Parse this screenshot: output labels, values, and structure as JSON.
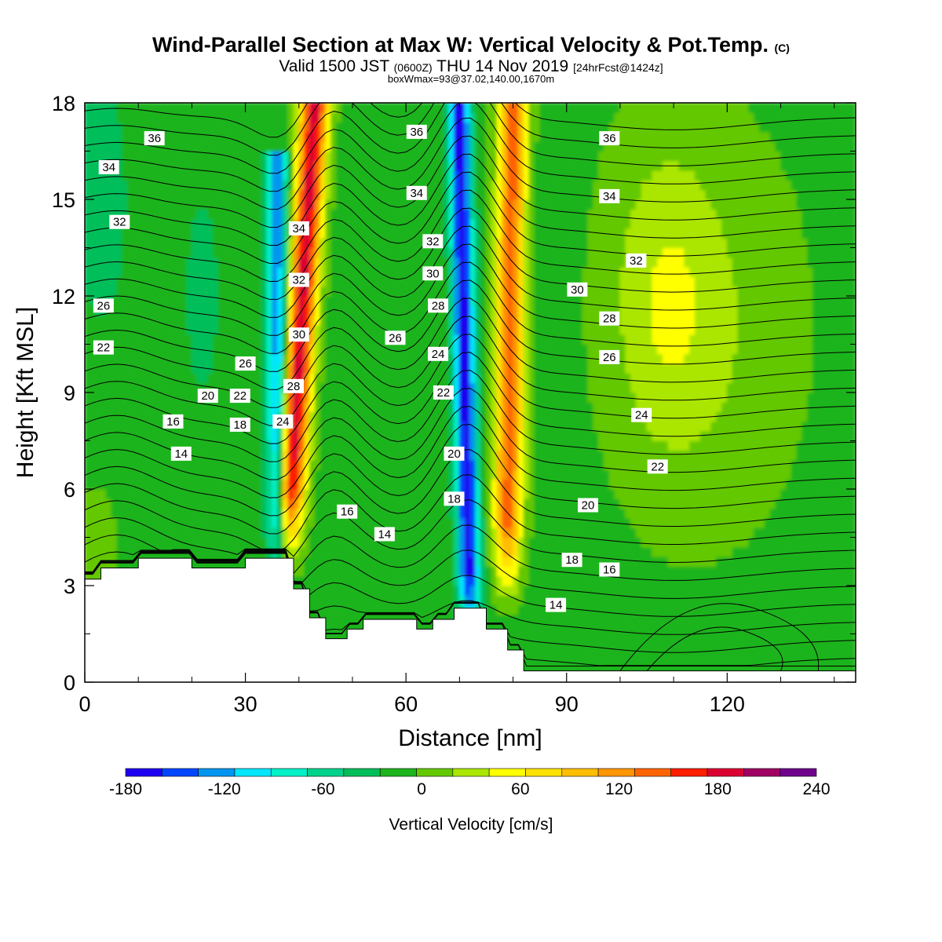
{
  "chart_data": {
    "type": "heatmap",
    "title": "Wind-Parallel Section at Max W: Vertical Velocity & Pot.Temp.",
    "title_mark": "(C)",
    "subtitle": {
      "prefix": "Valid 1500 JST",
      "utc": "(0600Z)",
      "date": "THU 14 Nov 2019",
      "fcst": "[24hrFcst@1424z]"
    },
    "box_info": "boxWmax=93@37.02,140.00,1670m",
    "xlabel": "Distance [nm]",
    "ylabel": "Height [Kft MSL]",
    "xlim": [
      0,
      144
    ],
    "ylim": [
      0,
      18
    ],
    "x_ticks": [
      0,
      30,
      60,
      90,
      120
    ],
    "y_ticks": [
      0,
      3,
      6,
      9,
      12,
      15,
      18
    ],
    "colorbar": {
      "label": "Vertical Velocity [cm/s]",
      "min": -180,
      "max": 240,
      "tick_values": [
        -180,
        -120,
        -60,
        0,
        60,
        120,
        180,
        240
      ],
      "colors": [
        "#1f00f0",
        "#0046ff",
        "#0096f0",
        "#00e6ff",
        "#00f0c8",
        "#00d28c",
        "#00be5a",
        "#1eb41e",
        "#64c800",
        "#aae600",
        "#ffff00",
        "#ffe100",
        "#ffbe00",
        "#ff9600",
        "#ff6400",
        "#ff1e00",
        "#dc0032",
        "#a00064",
        "#6e008c"
      ]
    },
    "fields": {
      "vertical_velocity": {
        "units": "cm/s",
        "features": [
          {
            "kind": "updraft",
            "x_top": 43,
            "x_bottom": 38,
            "y_range": [
              4.5,
              18
            ],
            "peak": 200
          },
          {
            "kind": "updraft",
            "x_top": 80,
            "x_bottom": 79,
            "y_range": [
              3.5,
              18
            ],
            "peak": 150
          },
          {
            "kind": "downdraft",
            "x_top": 36,
            "x_bottom": 36,
            "y_range": [
              3.5,
              15
            ],
            "peak": -120
          },
          {
            "kind": "downdraft",
            "x_top": 70,
            "x_bottom": 72,
            "y_range": [
              2,
              18
            ],
            "peak": -170
          }
        ]
      },
      "potential_temperature": {
        "units": "degC",
        "contour_labels": [
          {
            "value": "36",
            "x": 13,
            "y": 16.9
          },
          {
            "value": "34",
            "x": 4.5,
            "y": 16.0
          },
          {
            "value": "32",
            "x": 6.5,
            "y": 14.3
          },
          {
            "value": "26",
            "x": 3.5,
            "y": 11.7
          },
          {
            "value": "22",
            "x": 3.5,
            "y": 10.4
          },
          {
            "value": "26",
            "x": 30,
            "y": 9.9
          },
          {
            "value": "20",
            "x": 23,
            "y": 8.9
          },
          {
            "value": "22",
            "x": 29,
            "y": 8.9
          },
          {
            "value": "16",
            "x": 16.5,
            "y": 8.1
          },
          {
            "value": "18",
            "x": 29,
            "y": 8.0
          },
          {
            "value": "14",
            "x": 18,
            "y": 7.1
          },
          {
            "value": "34",
            "x": 40,
            "y": 14.1
          },
          {
            "value": "32",
            "x": 40,
            "y": 12.5
          },
          {
            "value": "30",
            "x": 40,
            "y": 10.8
          },
          {
            "value": "28",
            "x": 39,
            "y": 9.2
          },
          {
            "value": "24",
            "x": 37,
            "y": 8.1
          },
          {
            "value": "16",
            "x": 49,
            "y": 5.3
          },
          {
            "value": "14",
            "x": 56,
            "y": 4.6
          },
          {
            "value": "36",
            "x": 62,
            "y": 17.1
          },
          {
            "value": "34",
            "x": 62,
            "y": 15.2
          },
          {
            "value": "32",
            "x": 65,
            "y": 13.7
          },
          {
            "value": "30",
            "x": 65,
            "y": 12.7
          },
          {
            "value": "28",
            "x": 66,
            "y": 11.7
          },
          {
            "value": "26",
            "x": 58,
            "y": 10.7
          },
          {
            "value": "24",
            "x": 66,
            "y": 10.2
          },
          {
            "value": "22",
            "x": 67,
            "y": 9.0
          },
          {
            "value": "20",
            "x": 69,
            "y": 7.1
          },
          {
            "value": "18",
            "x": 69,
            "y": 5.7
          },
          {
            "value": "36",
            "x": 98,
            "y": 16.9
          },
          {
            "value": "34",
            "x": 98,
            "y": 15.1
          },
          {
            "value": "32",
            "x": 103,
            "y": 13.1
          },
          {
            "value": "30",
            "x": 92,
            "y": 12.2
          },
          {
            "value": "28",
            "x": 98,
            "y": 11.3
          },
          {
            "value": "26",
            "x": 98,
            "y": 10.1
          },
          {
            "value": "24",
            "x": 104,
            "y": 8.3
          },
          {
            "value": "22",
            "x": 107,
            "y": 6.7
          },
          {
            "value": "20",
            "x": 94,
            "y": 5.5
          },
          {
            "value": "18",
            "x": 91,
            "y": 3.8
          },
          {
            "value": "16",
            "x": 98,
            "y": 3.5
          },
          {
            "value": "14",
            "x": 88,
            "y": 2.4
          }
        ]
      }
    },
    "terrain_kft": {
      "x": [
        0,
        3,
        3,
        10,
        10,
        20,
        20,
        30,
        30,
        39,
        39,
        42,
        42,
        45,
        45,
        49,
        49,
        52,
        52,
        62,
        62,
        65,
        65,
        69,
        69,
        75,
        75,
        79,
        79,
        82,
        82,
        144
      ],
      "height": [
        3.2,
        3.2,
        3.55,
        3.55,
        3.85,
        3.85,
        3.55,
        3.55,
        3.85,
        3.85,
        2.9,
        2.9,
        2.0,
        2.0,
        1.35,
        1.35,
        1.65,
        1.65,
        1.95,
        1.95,
        1.65,
        1.65,
        1.95,
        1.95,
        2.3,
        2.3,
        1.65,
        1.65,
        1.0,
        1.0,
        0.35,
        0.35
      ]
    }
  }
}
